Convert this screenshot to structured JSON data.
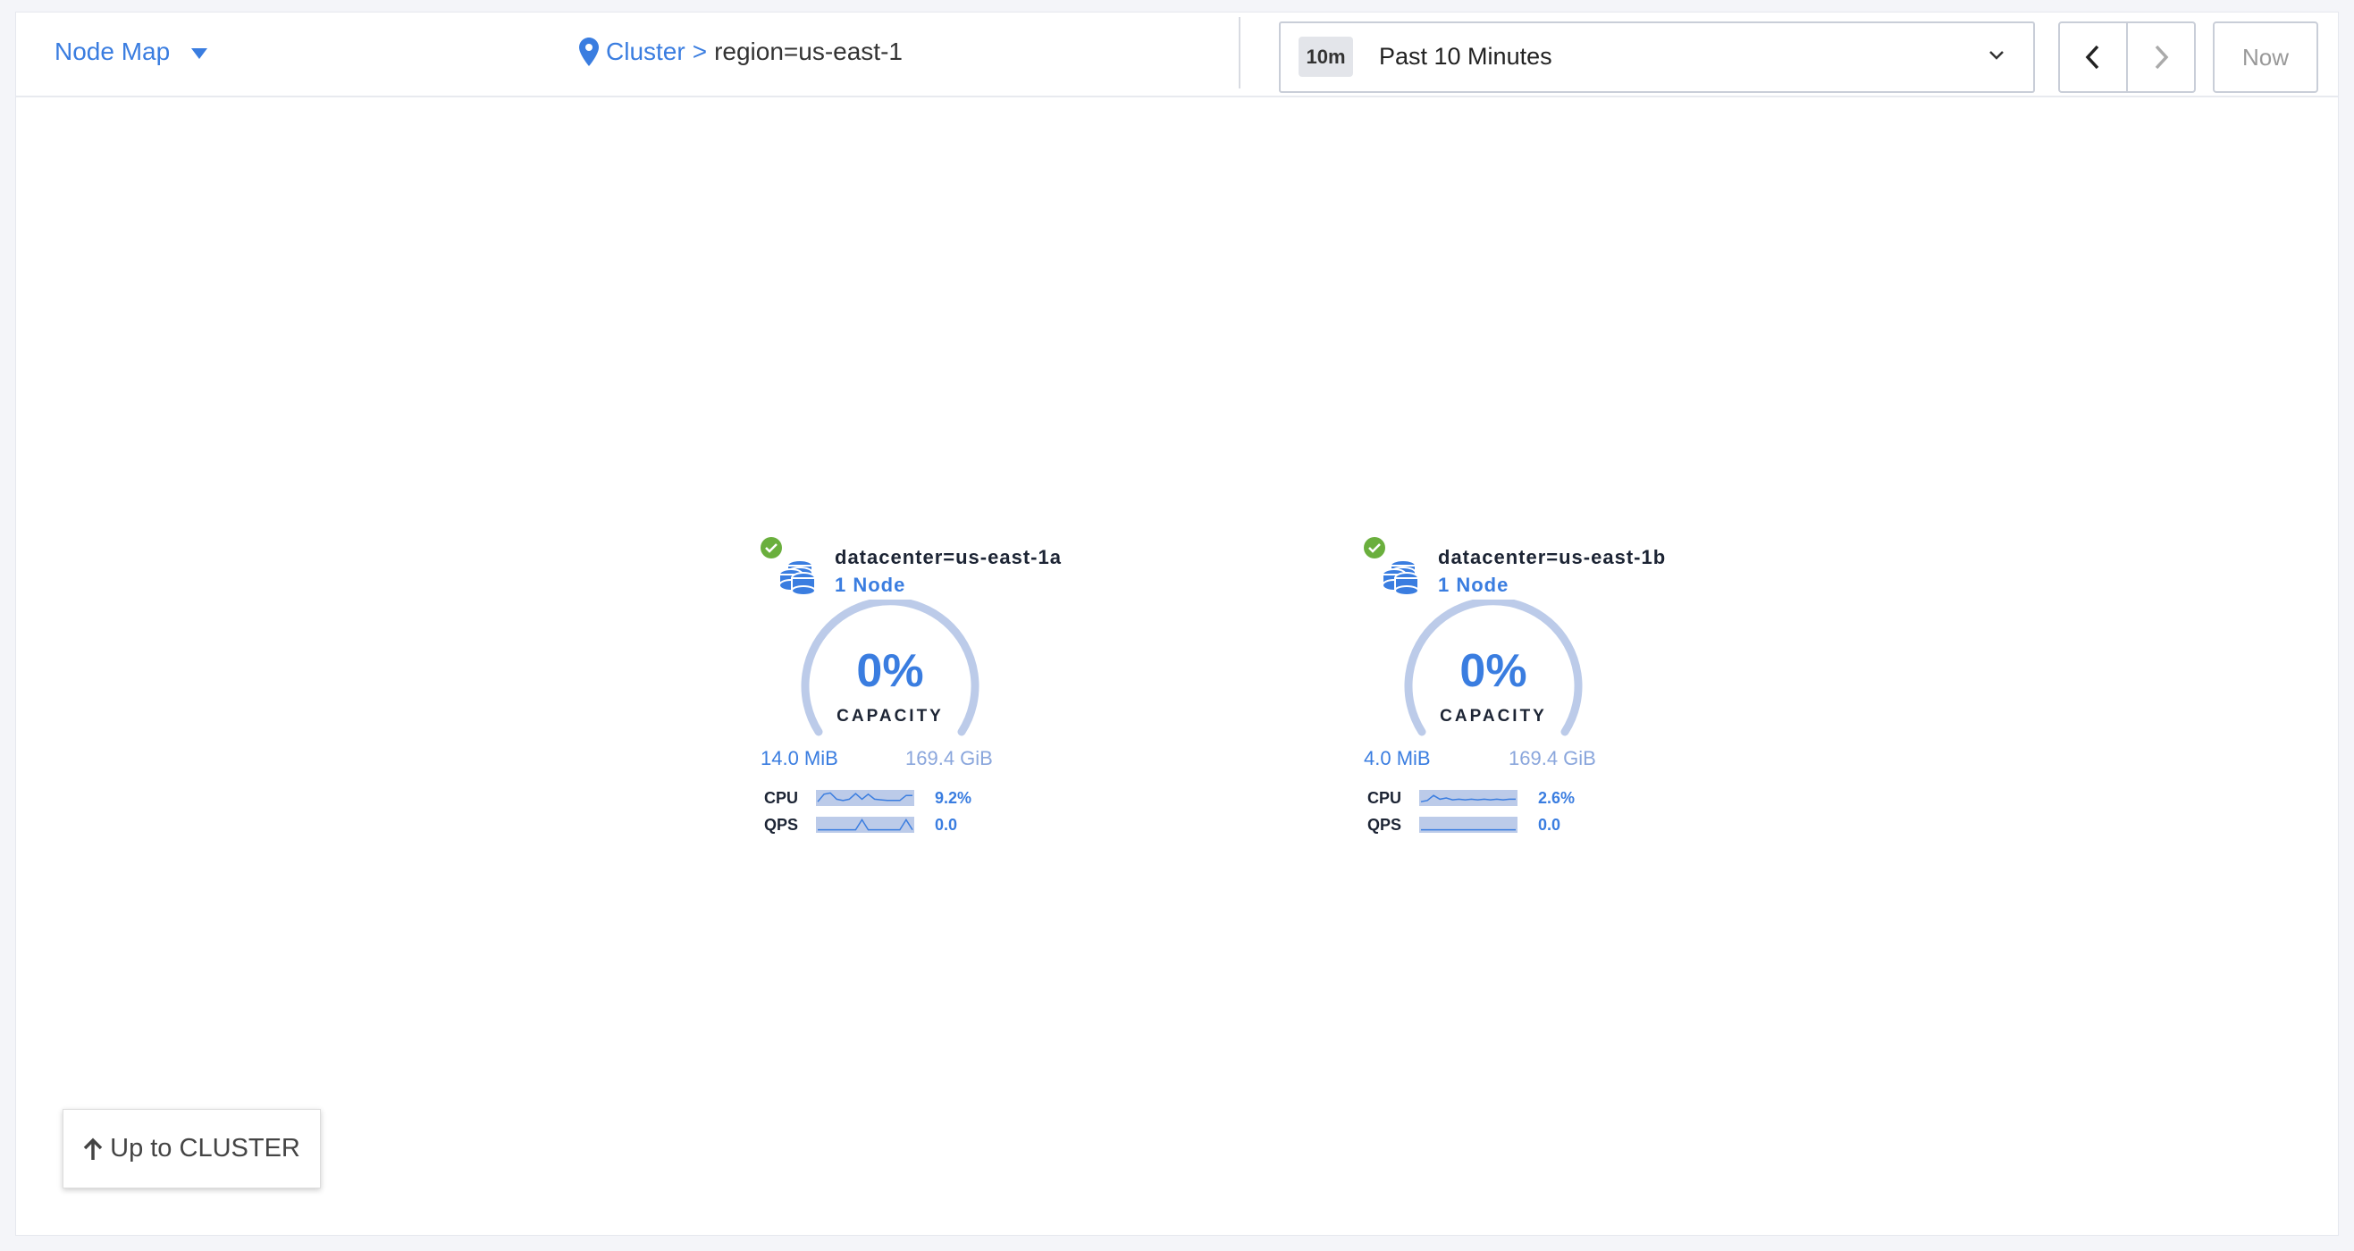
{
  "header": {
    "view_label": "Node Map",
    "breadcrumb": {
      "root": "Cluster",
      "separator": ">",
      "current": "region=us-east-1"
    },
    "time": {
      "badge": "10m",
      "label": "Past 10 Minutes"
    },
    "now_label": "Now"
  },
  "up_button": {
    "label": "Up to CLUSTER"
  },
  "colors": {
    "accent": "#3a7de0",
    "healthy": "#6aaf3d",
    "gauge_track": "#bccbe9"
  },
  "nodes": [
    {
      "name": "datacenter=us-east-1a",
      "count": "1 Node",
      "status": "healthy",
      "capacity": "0%",
      "capacity_label": "CAPACITY",
      "used": "14.0 MiB",
      "total": "169.4 GiB",
      "cpu_label": "CPU",
      "cpu_value": "9.2%",
      "qps_label": "QPS",
      "qps_value": "0.0",
      "cpu_spark": [
        0.2,
        0.8,
        0.9,
        0.4,
        0.3,
        0.4,
        0.85,
        0.4,
        0.8,
        0.4,
        0.35,
        0.3,
        0.3,
        0.3,
        0.7,
        0.7
      ],
      "qps_spark": [
        0.1,
        0.1,
        0.1,
        0.1,
        0.1,
        0.1,
        0.1,
        0.9,
        0.1,
        0.1,
        0.1,
        0.1,
        0.1,
        0.1,
        0.9,
        0.1
      ]
    },
    {
      "name": "datacenter=us-east-1b",
      "count": "1 Node",
      "status": "healthy",
      "capacity": "0%",
      "capacity_label": "CAPACITY",
      "used": "4.0 MiB",
      "total": "169.4 GiB",
      "cpu_label": "CPU",
      "cpu_value": "2.6%",
      "qps_label": "QPS",
      "qps_value": "0.0",
      "cpu_spark": [
        0.2,
        0.3,
        0.7,
        0.4,
        0.5,
        0.35,
        0.4,
        0.35,
        0.4,
        0.35,
        0.4,
        0.35,
        0.4,
        0.35,
        0.4,
        0.4
      ],
      "qps_spark": [
        0.1,
        0.1,
        0.1,
        0.1,
        0.1,
        0.1,
        0.1,
        0.1,
        0.1,
        0.1,
        0.1,
        0.1,
        0.1,
        0.1,
        0.1,
        0.1
      ]
    }
  ]
}
